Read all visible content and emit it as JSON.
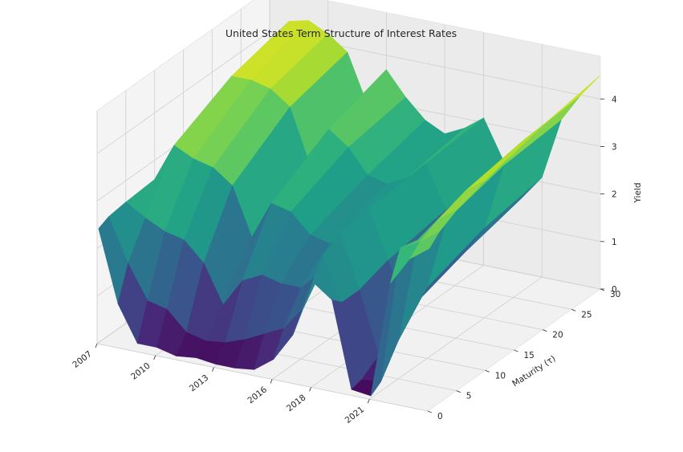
{
  "chart_data": {
    "type": "surface3d",
    "title": "United States Term Structure of Interest Rates",
    "xlabel": "",
    "ylabel": "Maturity (τ)",
    "zlabel": "Yield",
    "colormap": "viridis",
    "grid": true,
    "x_ticks": [
      "2007",
      "2010",
      "2013",
      "2016",
      "2018",
      "2021"
    ],
    "y_ticks": [
      0,
      5,
      10,
      15,
      20,
      25,
      30
    ],
    "z_ticks": [
      0,
      1,
      2,
      3,
      4
    ],
    "xlim": [
      2007,
      2024
    ],
    "ylim": [
      0,
      30
    ],
    "zlim": [
      0,
      4.9
    ],
    "x": [
      2007,
      2008,
      2009,
      2010,
      2011,
      2012,
      2013,
      2014,
      2015,
      2016,
      2017,
      2018,
      2019,
      2020,
      2021,
      2022,
      2023,
      2024
    ],
    "maturities": [
      0.25,
      2,
      5,
      10,
      20,
      30
    ],
    "yield": [
      [
        2.4,
        2.5,
        2.55,
        2.6,
        2.65,
        2.7
      ],
      [
        0.9,
        1.6,
        2.3,
        3.4,
        4.0,
        4.3
      ],
      [
        0.15,
        0.9,
        2.1,
        3.2,
        4.0,
        4.4
      ],
      [
        0.15,
        0.8,
        2.0,
        3.1,
        3.9,
        4.2
      ],
      [
        0.05,
        0.4,
        1.6,
        2.8,
        3.6,
        3.9
      ],
      [
        0.1,
        0.3,
        0.8,
        1.8,
        2.5,
        2.9
      ],
      [
        0.05,
        0.35,
        1.4,
        2.6,
        3.3,
        3.7
      ],
      [
        0.05,
        0.5,
        1.6,
        2.5,
        3.0,
        3.2
      ],
      [
        0.1,
        0.7,
        1.5,
        2.1,
        2.5,
        2.8
      ],
      [
        0.4,
        0.9,
        1.5,
        2.0,
        2.4,
        2.6
      ],
      [
        1.0,
        1.4,
        1.9,
        2.3,
        2.6,
        2.8
      ],
      [
        2.2,
        2.6,
        2.8,
        2.9,
        3.0,
        3.1
      ],
      [
        1.9,
        1.7,
        1.7,
        1.9,
        2.1,
        2.3
      ],
      [
        0.1,
        0.15,
        0.4,
        0.9,
        1.3,
        1.6
      ],
      [
        0.05,
        0.2,
        0.8,
        1.5,
        1.9,
        2.1
      ],
      [
        2.5,
        3.1,
        3.0,
        3.0,
        3.3,
        3.4
      ],
      [
        3.1,
        3.3,
        3.5,
        3.7,
        3.9,
        4.0
      ],
      [
        3.4,
        3.6,
        3.8,
        4.0,
        4.3,
        4.5
      ]
    ]
  }
}
